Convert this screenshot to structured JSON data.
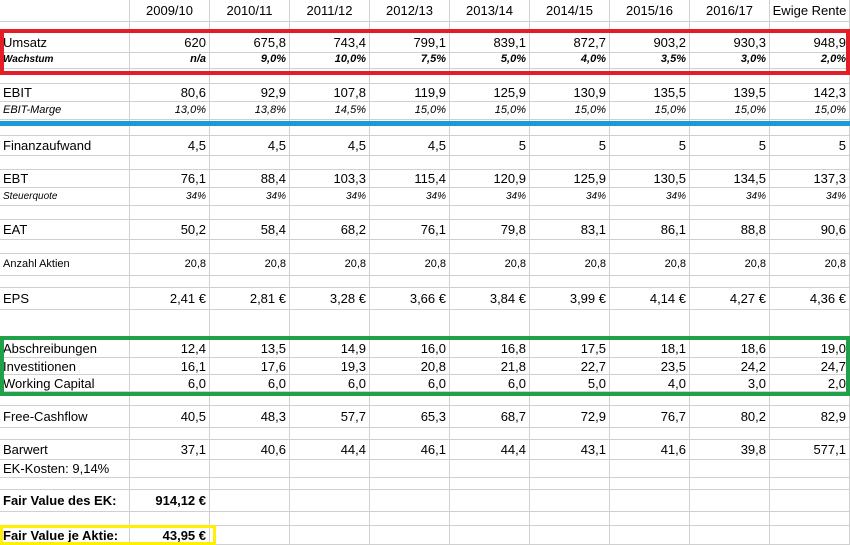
{
  "headers": [
    "",
    "2009/10",
    "2010/11",
    "2011/12",
    "2012/13",
    "2013/14",
    "2014/15",
    "2015/16",
    "2016/17",
    "Ewige Rente"
  ],
  "rows": [
    {
      "label": "Umsatz",
      "values": [
        "620",
        "675,8",
        "743,4",
        "799,1",
        "839,1",
        "872,7",
        "903,2",
        "930,3",
        "948,9"
      ]
    },
    {
      "label": "Wachstum",
      "values": [
        "n/a",
        "9,0%",
        "10,0%",
        "7,5%",
        "5,0%",
        "4,0%",
        "3,5%",
        "3,0%",
        "2,0%"
      ]
    },
    {
      "label": "EBIT",
      "values": [
        "80,6",
        "92,9",
        "107,8",
        "119,9",
        "125,9",
        "130,9",
        "135,5",
        "139,5",
        "142,3"
      ]
    },
    {
      "label": "EBIT-Marge",
      "values": [
        "13,0%",
        "13,8%",
        "14,5%",
        "15,0%",
        "15,0%",
        "15,0%",
        "15,0%",
        "15,0%",
        "15,0%"
      ]
    },
    {
      "label": "Finanzaufwand",
      "values": [
        "4,5",
        "4,5",
        "4,5",
        "4,5",
        "5",
        "5",
        "5",
        "5",
        "5"
      ]
    },
    {
      "label": "EBT",
      "values": [
        "76,1",
        "88,4",
        "103,3",
        "115,4",
        "120,9",
        "125,9",
        "130,5",
        "134,5",
        "137,3"
      ]
    },
    {
      "label": "Steuerquote",
      "values": [
        "34%",
        "34%",
        "34%",
        "34%",
        "34%",
        "34%",
        "34%",
        "34%",
        "34%"
      ]
    },
    {
      "label": "EAT",
      "values": [
        "50,2",
        "58,4",
        "68,2",
        "76,1",
        "79,8",
        "83,1",
        "86,1",
        "88,8",
        "90,6"
      ]
    },
    {
      "label": "Anzahl Aktien",
      "values": [
        "20,8",
        "20,8",
        "20,8",
        "20,8",
        "20,8",
        "20,8",
        "20,8",
        "20,8",
        "20,8"
      ]
    },
    {
      "label": "EPS",
      "values": [
        "2,41 €",
        "2,81 €",
        "3,28 €",
        "3,66 €",
        "3,84 €",
        "3,99 €",
        "4,14 €",
        "4,27 €",
        "4,36 €"
      ]
    },
    {
      "label": "Abschreibungen",
      "values": [
        "12,4",
        "13,5",
        "14,9",
        "16,0",
        "16,8",
        "17,5",
        "18,1",
        "18,6",
        "19,0"
      ]
    },
    {
      "label": "Investitionen",
      "values": [
        "16,1",
        "17,6",
        "19,3",
        "20,8",
        "21,8",
        "22,7",
        "23,5",
        "24,2",
        "24,7"
      ]
    },
    {
      "label": "Working Capital",
      "values": [
        "6,0",
        "6,0",
        "6,0",
        "6,0",
        "6,0",
        "5,0",
        "4,0",
        "3,0",
        "2,0"
      ]
    },
    {
      "label": "Free-Cashflow",
      "values": [
        "40,5",
        "48,3",
        "57,7",
        "65,3",
        "68,7",
        "72,9",
        "76,7",
        "80,2",
        "82,9"
      ]
    },
    {
      "label": "Barwert",
      "values": [
        "37,1",
        "40,6",
        "44,4",
        "46,1",
        "44,4",
        "43,1",
        "41,6",
        "39,8",
        "577,1"
      ]
    },
    {
      "label": "EK-Kosten: 9,14%",
      "values": []
    },
    {
      "label": "Fair Value des EK:",
      "values": [
        "914,12 €"
      ]
    },
    {
      "label": "Fair Value je Aktie:",
      "values": [
        "43,95 €"
      ]
    }
  ],
  "colors": {
    "red_box": "#e41e26",
    "blue_line": "#1a9ad6",
    "green_box": "#20a149",
    "yellow_box": "#ffef00",
    "gridline": "#d0d0d0"
  }
}
